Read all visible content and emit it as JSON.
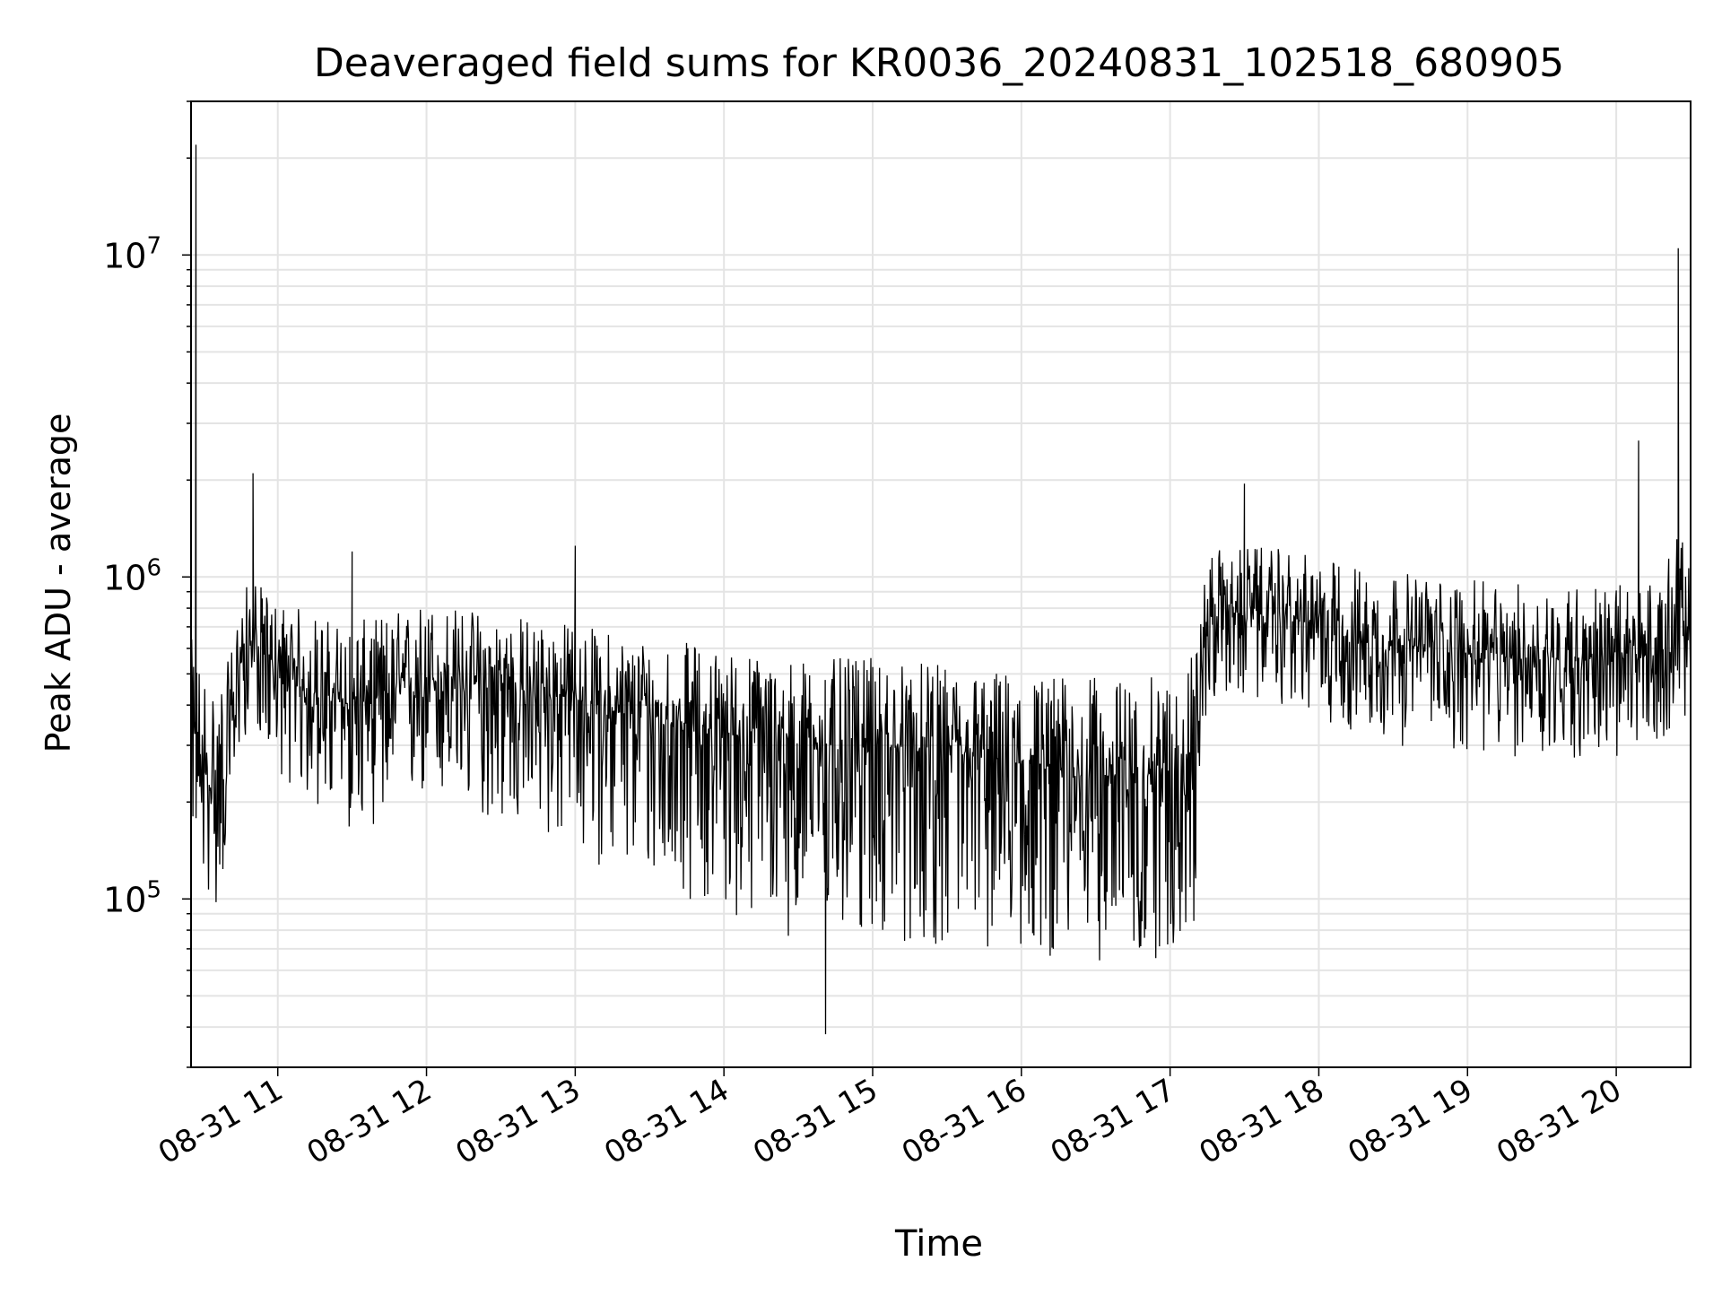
{
  "chart_data": {
    "type": "line",
    "title": "Deaveraged field sums for KR0036_20240831_102518_680905",
    "xlabel": "Time",
    "ylabel": "Peak ADU - average",
    "yscale": "log",
    "grid": true,
    "legend": "none",
    "line_color": "#000000",
    "xlim": [
      "2024-08-31T10:25",
      "2024-08-31T20:30"
    ],
    "ylim": [
      30000,
      30000000
    ],
    "x_ticks": [
      {
        "t": "2024-08-31T11:00",
        "label": "08-31 11"
      },
      {
        "t": "2024-08-31T12:00",
        "label": "08-31 12"
      },
      {
        "t": "2024-08-31T13:00",
        "label": "08-31 13"
      },
      {
        "t": "2024-08-31T14:00",
        "label": "08-31 14"
      },
      {
        "t": "2024-08-31T15:00",
        "label": "08-31 15"
      },
      {
        "t": "2024-08-31T16:00",
        "label": "08-31 16"
      },
      {
        "t": "2024-08-31T17:00",
        "label": "08-31 17"
      },
      {
        "t": "2024-08-31T18:00",
        "label": "08-31 18"
      },
      {
        "t": "2024-08-31T19:00",
        "label": "08-31 19"
      },
      {
        "t": "2024-08-31T20:00",
        "label": "08-31 20"
      }
    ],
    "y_ticks": [
      {
        "value": 100000,
        "base": "10",
        "exp": "5"
      },
      {
        "value": 1000000,
        "base": "10",
        "exp": "6"
      },
      {
        "value": 10000000,
        "base": "10",
        "exp": "7"
      }
    ],
    "series": [
      {
        "x": [
          "2024-08-31T10:25",
          "2024-08-31T10:27",
          "2024-08-31T10:30",
          "2024-08-31T10:33",
          "2024-08-31T10:36",
          "2024-08-31T10:40",
          "2024-08-31T10:45",
          "2024-08-31T10:50",
          "2024-08-31T10:55",
          "2024-08-31T11:00",
          "2024-08-31T11:10",
          "2024-08-31T11:20",
          "2024-08-31T11:30",
          "2024-08-31T11:40",
          "2024-08-31T11:50",
          "2024-08-31T12:00",
          "2024-08-31T12:10",
          "2024-08-31T12:20",
          "2024-08-31T12:30",
          "2024-08-31T12:40",
          "2024-08-31T12:50",
          "2024-08-31T13:00",
          "2024-08-31T13:15",
          "2024-08-31T13:30",
          "2024-08-31T13:45",
          "2024-08-31T14:00",
          "2024-08-31T14:15",
          "2024-08-31T14:30",
          "2024-08-31T14:45",
          "2024-08-31T15:00",
          "2024-08-31T15:15",
          "2024-08-31T15:30",
          "2024-08-31T15:45",
          "2024-08-31T16:00",
          "2024-08-31T16:15",
          "2024-08-31T16:30",
          "2024-08-31T16:45",
          "2024-08-31T17:00",
          "2024-08-31T17:10",
          "2024-08-31T17:15",
          "2024-08-31T17:30",
          "2024-08-31T17:45",
          "2024-08-31T18:00",
          "2024-08-31T18:15",
          "2024-08-31T18:30",
          "2024-08-31T18:45",
          "2024-08-31T19:00",
          "2024-08-31T19:15",
          "2024-08-31T19:30",
          "2024-08-31T19:45",
          "2024-08-31T20:00",
          "2024-08-31T20:10",
          "2024-08-31T20:20",
          "2024-08-31T20:25",
          "2024-08-31T20:30"
        ],
        "median": [
          350000,
          300000,
          250000,
          220000,
          230000,
          280000,
          550000,
          650000,
          560000,
          500000,
          450000,
          420000,
          400000,
          420000,
          450000,
          480000,
          470000,
          460000,
          450000,
          440000,
          430000,
          420000,
          380000,
          370000,
          350000,
          330000,
          310000,
          300000,
          300000,
          300000,
          290000,
          280000,
          270000,
          260000,
          250000,
          240000,
          240000,
          250000,
          300000,
          750000,
          780000,
          760000,
          700000,
          650000,
          620000,
          600000,
          580000,
          560000,
          560000,
          560000,
          550000,
          560000,
          600000,
          800000,
          600000
        ],
        "low": [
          170000,
          140000,
          110000,
          95000,
          90000,
          150000,
          300000,
          350000,
          300000,
          250000,
          200000,
          180000,
          160000,
          170000,
          180000,
          200000,
          190000,
          180000,
          170000,
          160000,
          150000,
          140000,
          120000,
          110000,
          100000,
          90000,
          80000,
          75000,
          75000,
          75000,
          70000,
          70000,
          68000,
          66000,
          65000,
          64000,
          62000,
          65000,
          80000,
          400000,
          420000,
          400000,
          360000,
          320000,
          300000,
          290000,
          280000,
          270000,
          270000,
          270000,
          260000,
          270000,
          300000,
          450000,
          300000
        ],
        "high": [
          650000,
          600000,
          550000,
          500000,
          480000,
          550000,
          900000,
          1000000,
          900000,
          850000,
          800000,
          750000,
          720000,
          760000,
          800000,
          850000,
          820000,
          800000,
          780000,
          760000,
          740000,
          720000,
          680000,
          660000,
          630000,
          600000,
          580000,
          560000,
          560000,
          560000,
          550000,
          530000,
          520000,
          510000,
          500000,
          490000,
          480000,
          500000,
          600000,
          1200000,
          1250000,
          1220000,
          1150000,
          1100000,
          1050000,
          1000000,
          980000,
          960000,
          960000,
          960000,
          950000,
          960000,
          1050000,
          1500000,
          1050000
        ],
        "spikes": [
          {
            "t": "2024-08-31T10:27",
            "value": 22000000
          },
          {
            "t": "2024-08-31T10:50",
            "value": 2100000
          },
          {
            "t": "2024-08-31T11:30",
            "value": 1200000
          },
          {
            "t": "2024-08-31T13:00",
            "value": 1250000
          },
          {
            "t": "2024-08-31T14:41",
            "value": 38000
          },
          {
            "t": "2024-08-31T17:30",
            "value": 1950000
          },
          {
            "t": "2024-08-31T20:09",
            "value": 2650000
          },
          {
            "t": "2024-08-31T20:25",
            "value": 10500000
          }
        ]
      }
    ]
  }
}
